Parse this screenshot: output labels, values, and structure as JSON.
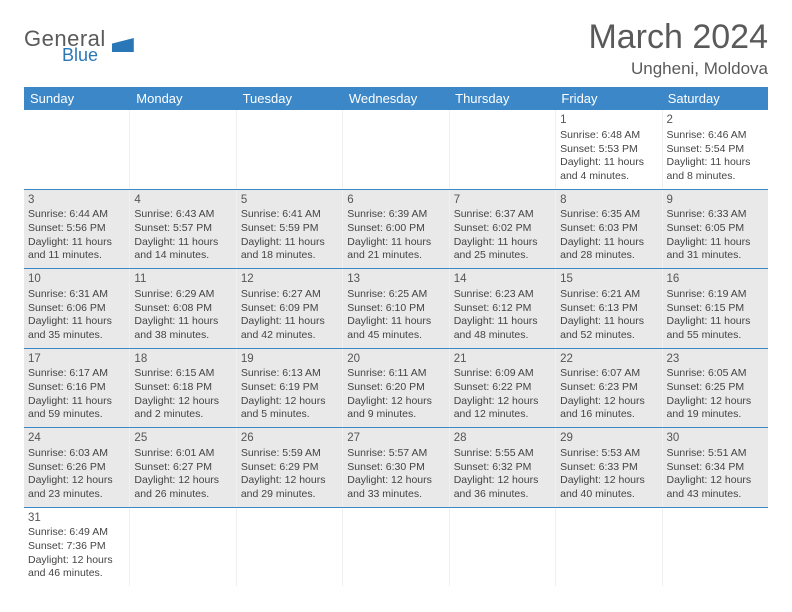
{
  "logo": {
    "line1": "General",
    "line2": "Blue"
  },
  "title": "March 2024",
  "location": "Ungheni, Moldova",
  "colors": {
    "header_bg": "#3b87c8",
    "header_text": "#ffffff",
    "shade_bg": "#e9e9e9",
    "border": "#3b87c8",
    "text": "#444444",
    "title_color": "#5a5a5a"
  },
  "day_headers": [
    "Sunday",
    "Monday",
    "Tuesday",
    "Wednesday",
    "Thursday",
    "Friday",
    "Saturday"
  ],
  "weeks": [
    [
      {
        "empty": true
      },
      {
        "empty": true
      },
      {
        "empty": true
      },
      {
        "empty": true
      },
      {
        "empty": true
      },
      {
        "day": "1",
        "sunrise": "6:48 AM",
        "sunset": "5:53 PM",
        "daylight": "11 hours and 4 minutes."
      },
      {
        "day": "2",
        "sunrise": "6:46 AM",
        "sunset": "5:54 PM",
        "daylight": "11 hours and 8 minutes."
      }
    ],
    [
      {
        "day": "3",
        "sunrise": "6:44 AM",
        "sunset": "5:56 PM",
        "daylight": "11 hours and 11 minutes.",
        "shaded": true
      },
      {
        "day": "4",
        "sunrise": "6:43 AM",
        "sunset": "5:57 PM",
        "daylight": "11 hours and 14 minutes.",
        "shaded": true
      },
      {
        "day": "5",
        "sunrise": "6:41 AM",
        "sunset": "5:59 PM",
        "daylight": "11 hours and 18 minutes.",
        "shaded": true
      },
      {
        "day": "6",
        "sunrise": "6:39 AM",
        "sunset": "6:00 PM",
        "daylight": "11 hours and 21 minutes.",
        "shaded": true
      },
      {
        "day": "7",
        "sunrise": "6:37 AM",
        "sunset": "6:02 PM",
        "daylight": "11 hours and 25 minutes.",
        "shaded": true
      },
      {
        "day": "8",
        "sunrise": "6:35 AM",
        "sunset": "6:03 PM",
        "daylight": "11 hours and 28 minutes.",
        "shaded": true
      },
      {
        "day": "9",
        "sunrise": "6:33 AM",
        "sunset": "6:05 PM",
        "daylight": "11 hours and 31 minutes.",
        "shaded": true
      }
    ],
    [
      {
        "day": "10",
        "sunrise": "6:31 AM",
        "sunset": "6:06 PM",
        "daylight": "11 hours and 35 minutes.",
        "shaded": true
      },
      {
        "day": "11",
        "sunrise": "6:29 AM",
        "sunset": "6:08 PM",
        "daylight": "11 hours and 38 minutes.",
        "shaded": true
      },
      {
        "day": "12",
        "sunrise": "6:27 AM",
        "sunset": "6:09 PM",
        "daylight": "11 hours and 42 minutes.",
        "shaded": true
      },
      {
        "day": "13",
        "sunrise": "6:25 AM",
        "sunset": "6:10 PM",
        "daylight": "11 hours and 45 minutes.",
        "shaded": true
      },
      {
        "day": "14",
        "sunrise": "6:23 AM",
        "sunset": "6:12 PM",
        "daylight": "11 hours and 48 minutes.",
        "shaded": true
      },
      {
        "day": "15",
        "sunrise": "6:21 AM",
        "sunset": "6:13 PM",
        "daylight": "11 hours and 52 minutes.",
        "shaded": true
      },
      {
        "day": "16",
        "sunrise": "6:19 AM",
        "sunset": "6:15 PM",
        "daylight": "11 hours and 55 minutes.",
        "shaded": true
      }
    ],
    [
      {
        "day": "17",
        "sunrise": "6:17 AM",
        "sunset": "6:16 PM",
        "daylight": "11 hours and 59 minutes.",
        "shaded": true
      },
      {
        "day": "18",
        "sunrise": "6:15 AM",
        "sunset": "6:18 PM",
        "daylight": "12 hours and 2 minutes.",
        "shaded": true
      },
      {
        "day": "19",
        "sunrise": "6:13 AM",
        "sunset": "6:19 PM",
        "daylight": "12 hours and 5 minutes.",
        "shaded": true
      },
      {
        "day": "20",
        "sunrise": "6:11 AM",
        "sunset": "6:20 PM",
        "daylight": "12 hours and 9 minutes.",
        "shaded": true
      },
      {
        "day": "21",
        "sunrise": "6:09 AM",
        "sunset": "6:22 PM",
        "daylight": "12 hours and 12 minutes.",
        "shaded": true
      },
      {
        "day": "22",
        "sunrise": "6:07 AM",
        "sunset": "6:23 PM",
        "daylight": "12 hours and 16 minutes.",
        "shaded": true
      },
      {
        "day": "23",
        "sunrise": "6:05 AM",
        "sunset": "6:25 PM",
        "daylight": "12 hours and 19 minutes.",
        "shaded": true
      }
    ],
    [
      {
        "day": "24",
        "sunrise": "6:03 AM",
        "sunset": "6:26 PM",
        "daylight": "12 hours and 23 minutes.",
        "shaded": true
      },
      {
        "day": "25",
        "sunrise": "6:01 AM",
        "sunset": "6:27 PM",
        "daylight": "12 hours and 26 minutes.",
        "shaded": true
      },
      {
        "day": "26",
        "sunrise": "5:59 AM",
        "sunset": "6:29 PM",
        "daylight": "12 hours and 29 minutes.",
        "shaded": true
      },
      {
        "day": "27",
        "sunrise": "5:57 AM",
        "sunset": "6:30 PM",
        "daylight": "12 hours and 33 minutes.",
        "shaded": true
      },
      {
        "day": "28",
        "sunrise": "5:55 AM",
        "sunset": "6:32 PM",
        "daylight": "12 hours and 36 minutes.",
        "shaded": true
      },
      {
        "day": "29",
        "sunrise": "5:53 AM",
        "sunset": "6:33 PM",
        "daylight": "12 hours and 40 minutes.",
        "shaded": true
      },
      {
        "day": "30",
        "sunrise": "5:51 AM",
        "sunset": "6:34 PM",
        "daylight": "12 hours and 43 minutes.",
        "shaded": true
      }
    ],
    [
      {
        "day": "31",
        "sunrise": "6:49 AM",
        "sunset": "7:36 PM",
        "daylight": "12 hours and 46 minutes."
      },
      {
        "empty": true
      },
      {
        "empty": true
      },
      {
        "empty": true
      },
      {
        "empty": true
      },
      {
        "empty": true
      },
      {
        "empty": true
      }
    ]
  ],
  "labels": {
    "sunrise": "Sunrise:",
    "sunset": "Sunset:",
    "daylight": "Daylight:"
  }
}
